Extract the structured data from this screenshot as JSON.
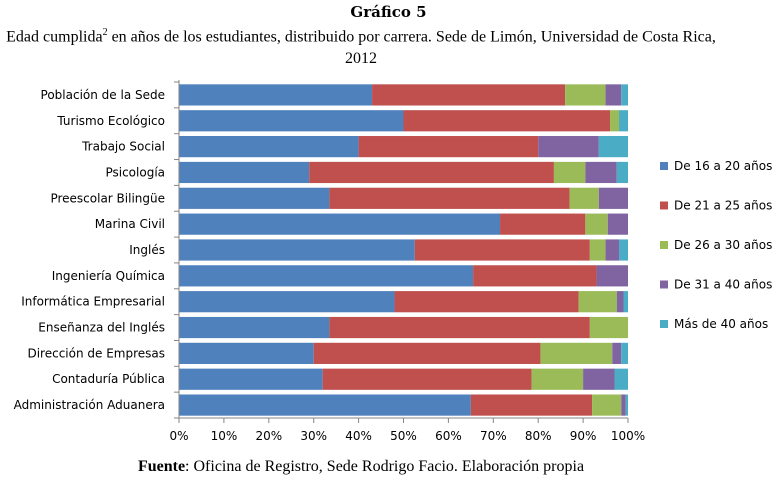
{
  "title": "Gráfico 5",
  "subtitle_before": "Edad cumplida",
  "subtitle_sup": "2",
  "subtitle_after": " en años de los estudiantes, distribuido por carrera. Sede de Limón, Universidad de Costa Rica, 2012",
  "source_label": "Fuente",
  "source_text": ": Oficina de Registro, Sede Rodrigo Facio. Elaboración propia",
  "chart_data": {
    "type": "bar",
    "orientation": "horizontal",
    "stacked": "percent",
    "title": "",
    "xlabel": "",
    "ylabel": "",
    "xlim": [
      0,
      100
    ],
    "x_ticks": [
      "0%",
      "10%",
      "20%",
      "30%",
      "40%",
      "50%",
      "60%",
      "70%",
      "80%",
      "90%",
      "100%"
    ],
    "grid": false,
    "legend_position": "right",
    "categories": [
      "Población de la Sede",
      "Turismo Ecológico",
      "Trabajo Social",
      "Psicología",
      "Preescolar Bilingüe",
      "Marina Civil",
      "Inglés",
      "Ingeniería Química",
      "Informática Empresarial",
      "Enseñanza del Inglés",
      "Dirección de Empresas",
      "Contaduría Pública",
      "Administración Aduanera"
    ],
    "series": [
      {
        "name": "De 16 a 20 años",
        "color": "#4F81BD",
        "values": [
          43,
          50,
          40,
          29,
          33.5,
          71.5,
          52.5,
          65.5,
          48,
          33.5,
          30,
          32,
          65
        ]
      },
      {
        "name": "De 21 a 25 años",
        "color": "#C0504D",
        "values": [
          43,
          46,
          40,
          54.5,
          53.5,
          19,
          39,
          27.5,
          41,
          58,
          50.5,
          46.5,
          27
        ]
      },
      {
        "name": "De 26 a 30 años",
        "color": "#9BBB59",
        "values": [
          9,
          2,
          0,
          7,
          6.5,
          5,
          3.5,
          0,
          8.5,
          8.5,
          16,
          11.5,
          6.5
        ]
      },
      {
        "name": "De 31 a 40 años",
        "color": "#8064A2",
        "values": [
          3.5,
          0,
          13.5,
          7,
          6.5,
          4.5,
          3,
          7,
          1.5,
          0,
          2,
          7,
          1
        ]
      },
      {
        "name": "Más de 40 años",
        "color": "#4BACC6",
        "values": [
          1.5,
          2,
          6.5,
          2.5,
          0,
          0,
          2,
          0,
          1,
          0,
          1.5,
          3,
          0.5
        ]
      }
    ]
  }
}
